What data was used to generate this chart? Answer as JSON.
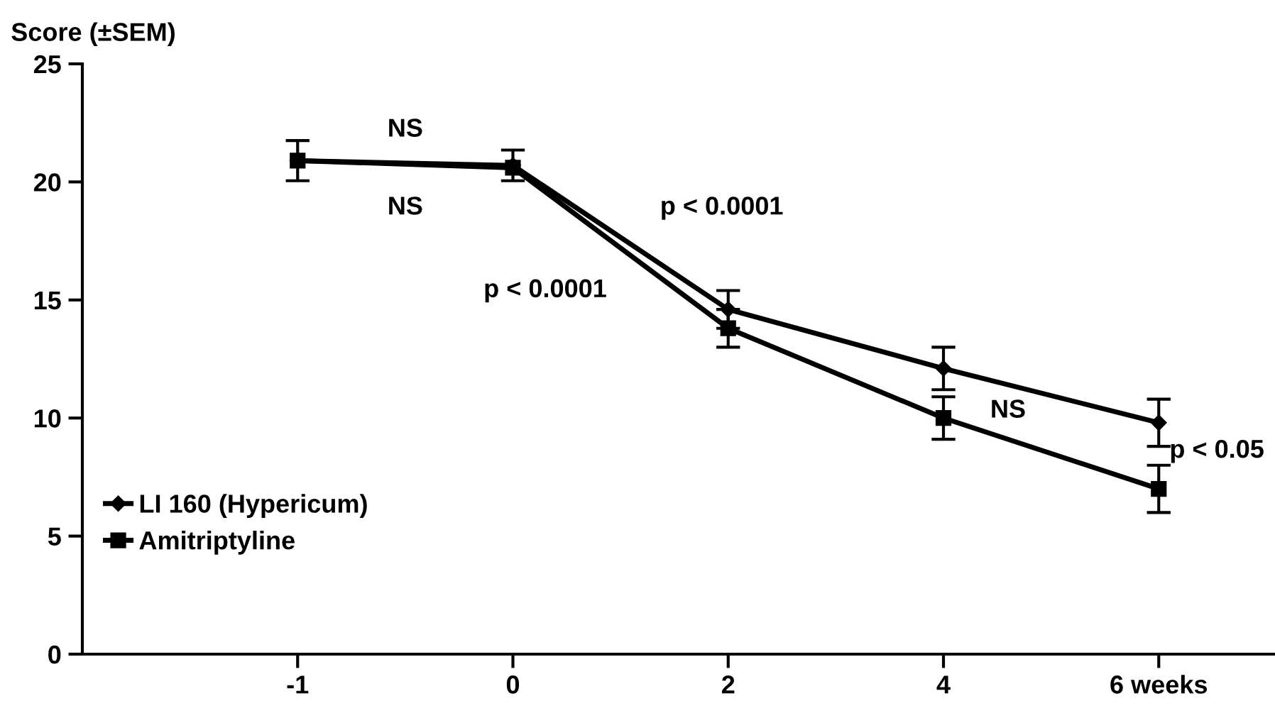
{
  "chart_data": {
    "type": "line",
    "ylabel": "Score (±SEM)",
    "categories": [
      "-1",
      "0",
      "2",
      "4",
      "6 weeks"
    ],
    "series": [
      {
        "name": "LI 160 (Hypericum)",
        "color": "#000000",
        "marker": "diamond",
        "values": [
          20.9,
          20.7,
          14.6,
          12.1,
          9.8
        ],
        "errors": [
          0.85,
          0.65,
          0.8,
          0.9,
          1.0
        ]
      },
      {
        "name": "Amitriptyline",
        "color": "#000000",
        "marker": "square",
        "values": [
          20.9,
          20.6,
          13.8,
          10.0,
          7.0
        ],
        "errors": [
          null,
          null,
          0.8,
          0.9,
          1.0
        ]
      }
    ],
    "ylim": [
      0,
      25
    ],
    "yticks": [
      0,
      5,
      10,
      15,
      20,
      25
    ],
    "grid": false,
    "legend": "left",
    "annotations": [
      "NS",
      "NS",
      "p < 0.0001",
      "p < 0.0001",
      "NS",
      "p < 0.05"
    ]
  }
}
